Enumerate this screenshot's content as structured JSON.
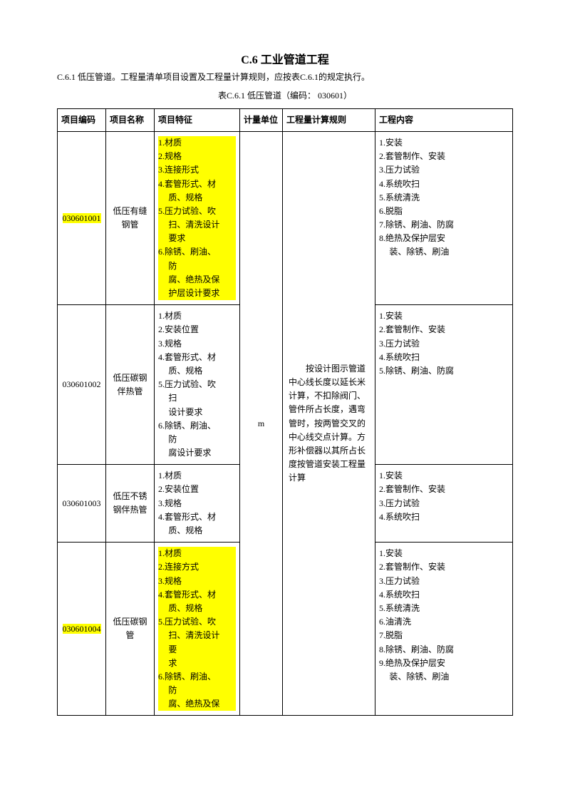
{
  "title": "C.6 工业管道工程",
  "subtitle": "C.6.1 低压管道。工程量清单项目设置及工程量计算规则，应按表C.6.1的规定执行。",
  "tableCaption": "表C.6.1 低压管道（编码： 030601）",
  "headers": {
    "code": "项目编码",
    "name": "项目名称",
    "feat": "项目特征",
    "unit": "计量单位",
    "rule": "工程量计算规则",
    "cont": "工程内容"
  },
  "unit": "m",
  "rule": "按设计图示管道中心线长度以延长米计算，不扣除阀门、管件所占长度，遇弯管时，按两管交叉的中心线交点计算。方形补偿器以其所占长度按管道安装工程量计算",
  "rows": {
    "r1": {
      "code": "030601001",
      "name": "低压有缝钢管",
      "feat": {
        "a": "1.材质",
        "b": "2.规格",
        "c": "3.连接形式",
        "d": "4.套管形式、材",
        "d2": "质、规格",
        "e": "5.压力试验、吹",
        "e2": "扫、清洗设计",
        "e3": "要求",
        "f": "6.除锈、刷油、",
        "f2": "防",
        "g": "腐、绝热及保",
        "g2": "护层设计要求"
      },
      "cont": {
        "a": "1.安装",
        "b": "2.套管制作、安装",
        "c": "3.压力试验",
        "d": "4.系统吹扫",
        "e": "5.系统清洗",
        "f": "6.脱脂",
        "g": "7.除锈、刷油、防腐",
        "h": "8.绝热及保护层安",
        "h2": "装、除锈、刷油"
      }
    },
    "r2": {
      "code": "030601002",
      "name": "低压碳钢伴热管",
      "feat": {
        "a": "1.材质",
        "b": "2.安装位置",
        "c": "3.规格",
        "d": "4.套管形式、材",
        "d2": "质、规格",
        "e": "5.压力试验、吹",
        "e2": "扫",
        "e3": "设计要求",
        "f": "6.除锈、刷油、",
        "f2": "防",
        "g": "腐设计要求"
      },
      "cont": {
        "a": "1.安装",
        "b": "2.套管制作、安装",
        "c": "3.压力试验",
        "d": "4.系统吹扫",
        "e": "5.除锈、刷油、防腐"
      }
    },
    "r3": {
      "code": "030601003",
      "name": "低压不锈钢伴热管",
      "feat": {
        "a": "1.材质",
        "b": "2.安装位置",
        "c": "3.规格",
        "d": "4.套管形式、材",
        "d2": "质、规格"
      },
      "cont": {
        "a": "1.安装",
        "b": "2.套管制作、安装",
        "c": "3.压力试验",
        "d": "4.系统吹扫"
      }
    },
    "r4": {
      "code": "030601004",
      "name": "低压碳钢管",
      "feat": {
        "a": "1.材质",
        "b": "2.连接方式",
        "c": "3.规格",
        "d": "4.套管形式、材",
        "d2": "质、规格",
        "e": "5.压力试验、吹",
        "e2": "扫、清洗设计",
        "e3": "要",
        "e4": "求",
        "f": "6.除锈、刷油、",
        "f2": "防",
        "g": "腐、绝热及保"
      },
      "cont": {
        "a": "1.安装",
        "b": "2.套管制作、安装",
        "c": "3.压力试验",
        "d": "4.系统吹扫",
        "e": "5.系统清洗",
        "f": "6.油清洗",
        "g": "7.脱脂",
        "h": "8.除锈、刷油、防腐",
        "i": "9.绝热及保护层安",
        "i2": "装、除锈、刷油"
      }
    }
  }
}
